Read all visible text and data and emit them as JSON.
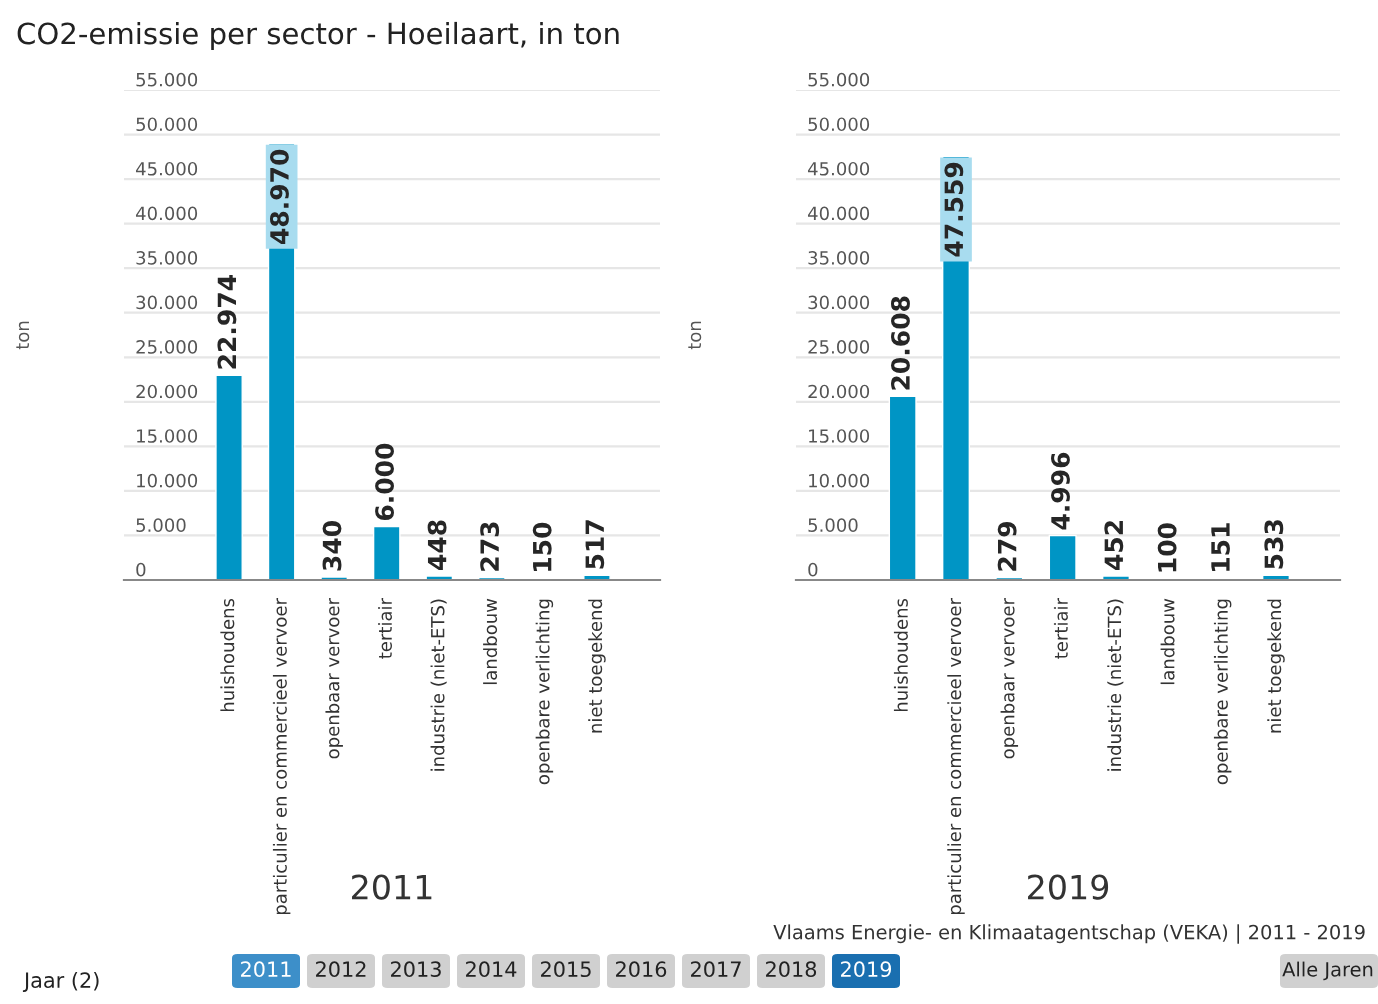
{
  "chart_data": [
    {
      "type": "bar",
      "title": "CO2-emissie per sector - Hoeilaart, in ton",
      "ylabel": "ton",
      "xlabel": "2011",
      "categories": [
        "huishoudens",
        "particulier en commercieel vervoer",
        "openbaar vervoer",
        "tertiair",
        "industrie (niet-ETS)",
        "landbouw",
        "openbare verlichting",
        "niet toegekend"
      ],
      "values": [
        22974,
        48970,
        340,
        6000,
        448,
        273,
        150,
        517
      ],
      "color": "#0095c5",
      "value_labels": [
        "22.974",
        "48.970",
        "340",
        "6.000",
        "448",
        "273",
        "150",
        "517"
      ],
      "ylim": [
        0,
        55000
      ],
      "yticks": [
        {
          "value": 0,
          "label": "0"
        },
        {
          "value": 5000,
          "label": "5.000"
        },
        {
          "value": 10000,
          "label": "10.000"
        },
        {
          "value": 15000,
          "label": "15.000"
        },
        {
          "value": 20000,
          "label": "20.000"
        },
        {
          "value": 25000,
          "label": "25.000"
        },
        {
          "value": 30000,
          "label": "30.000"
        },
        {
          "value": 35000,
          "label": "35.000"
        },
        {
          "value": 40000,
          "label": "40.000"
        },
        {
          "value": 45000,
          "label": "45.000"
        },
        {
          "value": 50000,
          "label": "50.000"
        },
        {
          "value": 55000,
          "label": "55.000"
        }
      ],
      "grid": "y",
      "annotations": [
        "Vlaams Energie- en Klimaatagentschap (VEKA) | 2011 - 2019",
        "Jaar (2)",
        "2011",
        "2012",
        "2013",
        "2014",
        "2015",
        "2016",
        "2017",
        "2018",
        "2019",
        "Alle Jaren"
      ]
    },
    {
      "type": "bar",
      "ylabel": "ton",
      "xlabel": "2019",
      "categories": [
        "huishoudens",
        "particulier en commercieel vervoer",
        "openbaar vervoer",
        "tertiair",
        "industrie (niet-ETS)",
        "landbouw",
        "openbare verlichting",
        "niet toegekend"
      ],
      "values": [
        20608,
        47559,
        279,
        4996,
        452,
        100,
        151,
        533
      ],
      "color": "#0095c5",
      "value_labels": [
        "20.608",
        "47.559",
        "279",
        "4.996",
        "452",
        "100",
        "151",
        "533"
      ],
      "ylim": [
        0,
        55000
      ],
      "yticks": [
        {
          "value": 0,
          "label": "0"
        },
        {
          "value": 5000,
          "label": "5.000"
        },
        {
          "value": 10000,
          "label": "10.000"
        },
        {
          "value": 15000,
          "label": "15.000"
        },
        {
          "value": 20000,
          "label": "20.000"
        },
        {
          "value": 25000,
          "label": "25.000"
        },
        {
          "value": 30000,
          "label": "30.000"
        },
        {
          "value": 35000,
          "label": "35.000"
        },
        {
          "value": 40000,
          "label": "40.000"
        },
        {
          "value": 45000,
          "label": "45.000"
        },
        {
          "value": 50000,
          "label": "50.000"
        },
        {
          "value": 55000,
          "label": "55.000"
        }
      ],
      "grid": "y"
    }
  ]
}
